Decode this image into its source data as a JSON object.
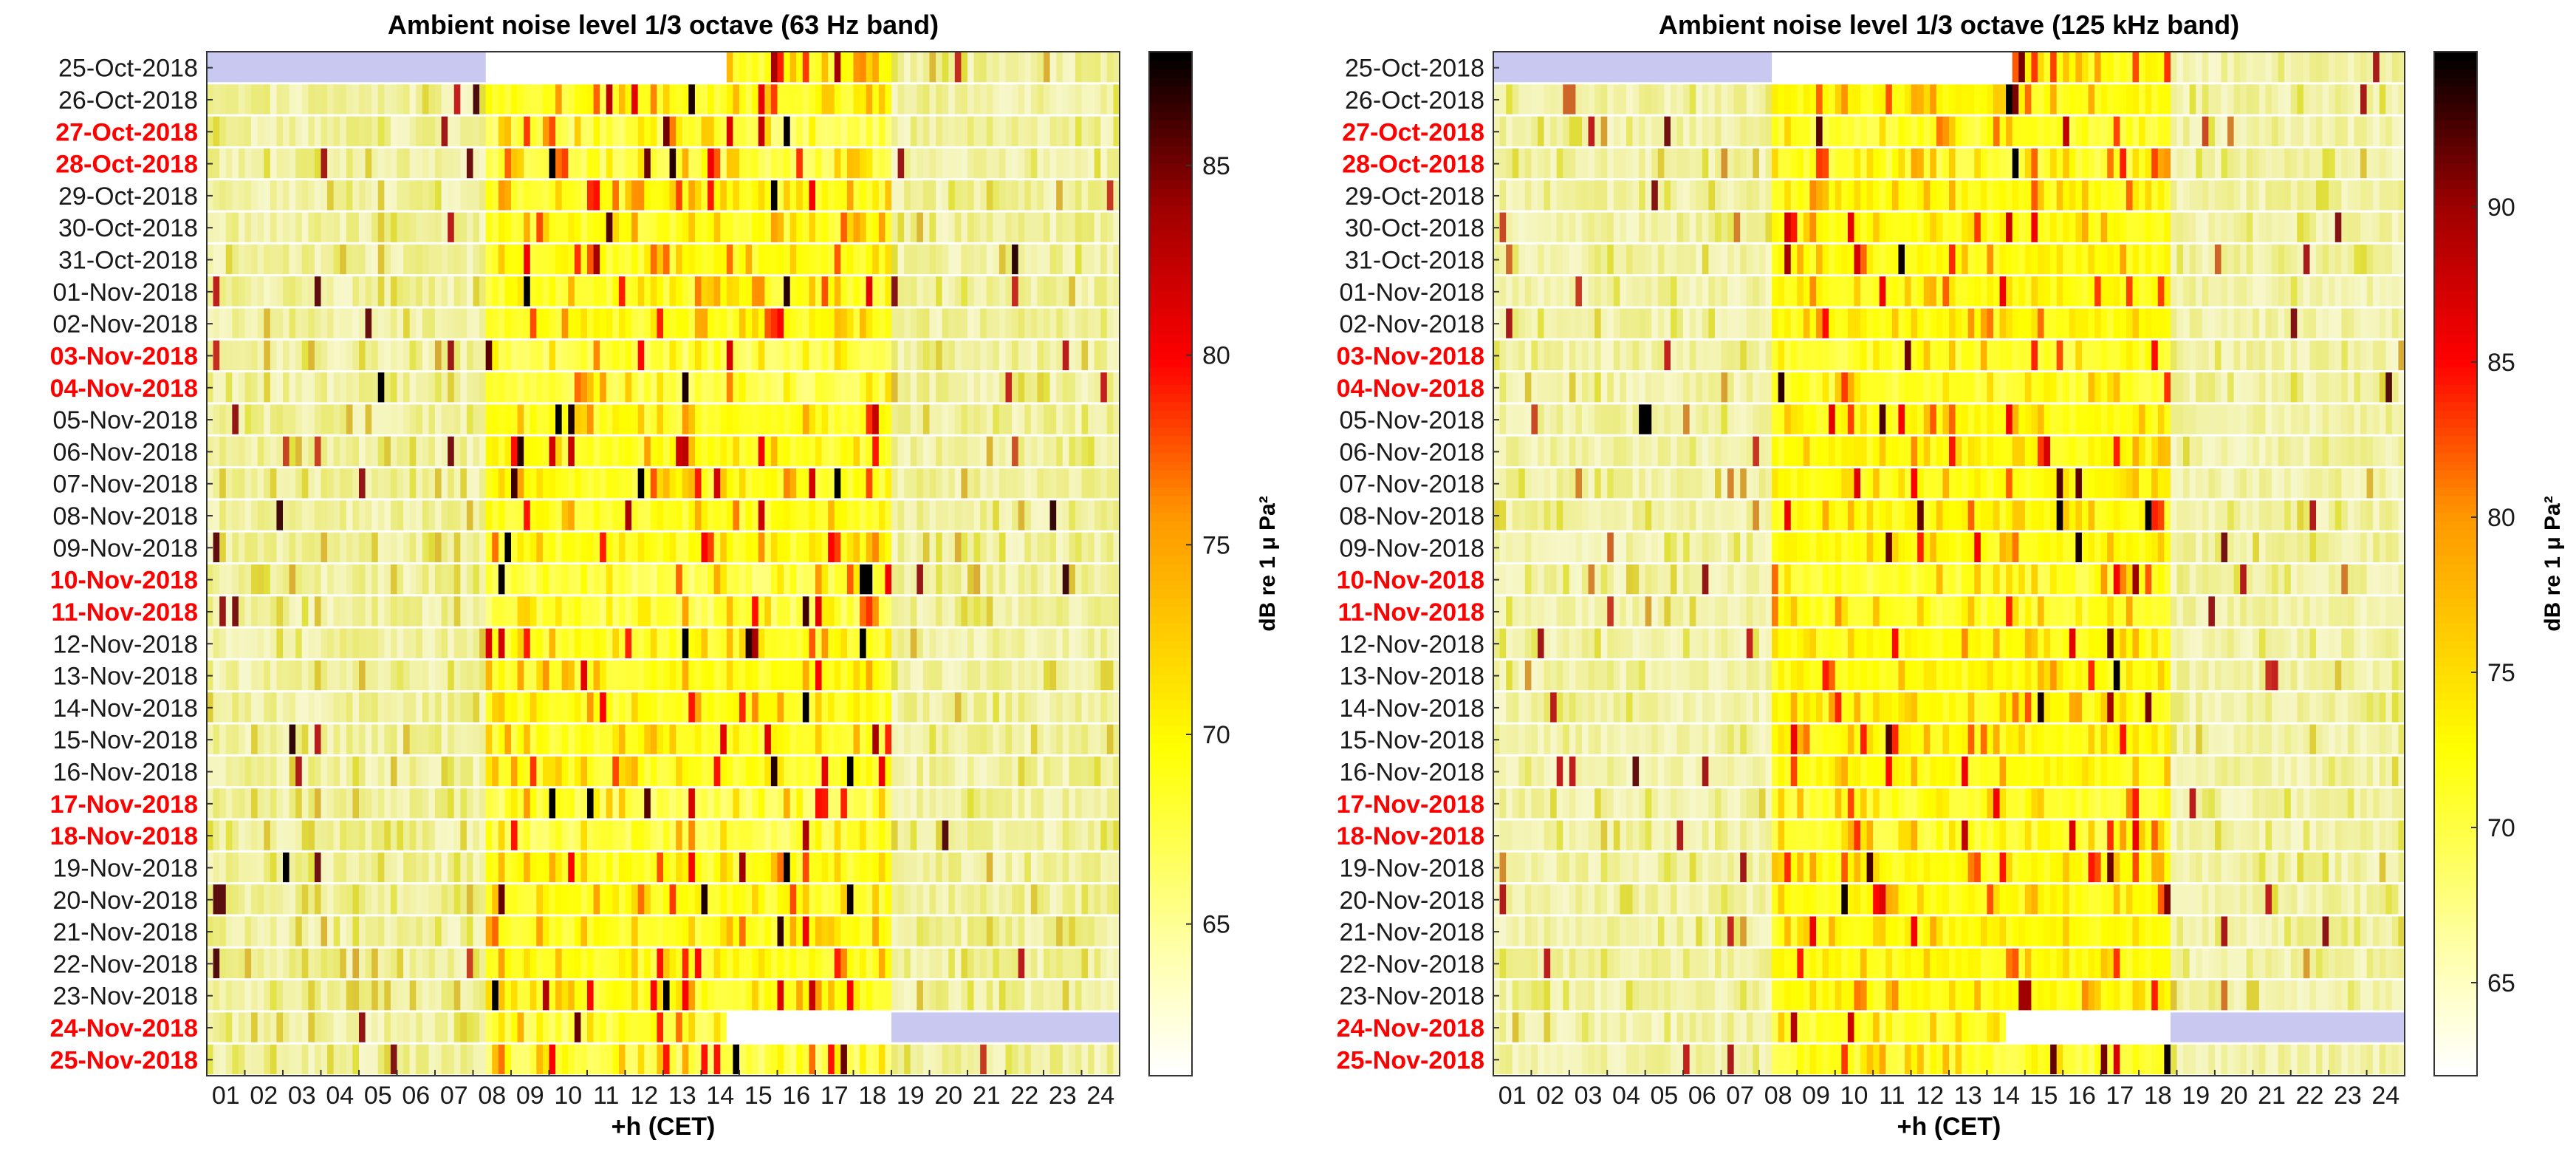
{
  "chart_data": [
    {
      "type": "heatmap",
      "title": "Ambient noise level 1/3 octave (63 Hz band)",
      "xlabel": "+h (CET)",
      "colorbar_label": "dB re 1 μ Pa²",
      "xlim": [
        0,
        24
      ],
      "x_ticks": [
        "01",
        "02",
        "03",
        "04",
        "05",
        "06",
        "07",
        "08",
        "09",
        "10",
        "11",
        "12",
        "13",
        "14",
        "15",
        "16",
        "17",
        "18",
        "19",
        "20",
        "21",
        "22",
        "23",
        "24"
      ],
      "color_range": [
        61,
        88
      ],
      "colorbar_ticks": [
        65,
        70,
        75,
        80,
        85
      ],
      "colormap": "hot (reversed)",
      "base_level_night": 65.5,
      "base_level_day": 68.5,
      "daytime_hours": [
        7.4,
        18.0
      ],
      "missing_color": "#c8c8f0",
      "missing_data_ranges": [
        {
          "row": 0,
          "from": 0,
          "to": 7.4
        },
        {
          "row": 0,
          "from": 7.4,
          "to": 13.7,
          "color": "#ffffff"
        },
        {
          "row": 30,
          "from": 13.7,
          "to": 18.0,
          "color": "#ffffff"
        },
        {
          "row": 30,
          "from": 18.0,
          "to": 24
        }
      ],
      "sample_level_at_hour": [
        {
          "date": "01-Nov-2018",
          "hour": 14.5,
          "value": 76
        },
        {
          "date": "10-Nov-2018",
          "hour": 17.4,
          "value": 88
        },
        {
          "date": "20-Nov-2018",
          "hour": 0.3,
          "value": 85
        }
      ]
    },
    {
      "type": "heatmap",
      "title": "Ambient noise level 1/3 octave (125 kHz band)",
      "xlabel": "+h (CET)",
      "colorbar_label": "dB re 1 μ Pa²",
      "xlim": [
        0,
        24
      ],
      "x_ticks": [
        "01",
        "02",
        "03",
        "04",
        "05",
        "06",
        "07",
        "08",
        "09",
        "10",
        "11",
        "12",
        "13",
        "14",
        "15",
        "16",
        "17",
        "18",
        "19",
        "20",
        "21",
        "22",
        "23",
        "24"
      ],
      "color_range": [
        62,
        95
      ],
      "colorbar_ticks": [
        65,
        70,
        75,
        80,
        85,
        90
      ],
      "colormap": "hot (reversed)",
      "base_level_night": 67,
      "base_level_day": 72,
      "daytime_hours": [
        7.3,
        17.9
      ],
      "missing_color": "#c8c8f0",
      "missing_data_ranges": [
        {
          "row": 0,
          "from": 0,
          "to": 7.3
        },
        {
          "row": 0,
          "from": 7.3,
          "to": 13.6,
          "color": "#ffffff"
        },
        {
          "row": 30,
          "from": 13.5,
          "to": 17.9,
          "color": "#ffffff"
        },
        {
          "row": 30,
          "from": 17.9,
          "to": 24
        }
      ],
      "sample_level_at_hour": [
        {
          "date": "26-Oct-2018",
          "hour": 2.0,
          "value": 82
        },
        {
          "date": "05-Nov-2018",
          "hour": 4.0,
          "value": 95
        },
        {
          "date": "23-Nov-2018",
          "hour": 14.0,
          "value": 90
        }
      ]
    }
  ],
  "dates": [
    {
      "label": "25-Oct-2018",
      "weekend": false
    },
    {
      "label": "26-Oct-2018",
      "weekend": false
    },
    {
      "label": "27-Oct-2018",
      "weekend": true
    },
    {
      "label": "28-Oct-2018",
      "weekend": true
    },
    {
      "label": "29-Oct-2018",
      "weekend": false
    },
    {
      "label": "30-Oct-2018",
      "weekend": false
    },
    {
      "label": "31-Oct-2018",
      "weekend": false
    },
    {
      "label": "01-Nov-2018",
      "weekend": false
    },
    {
      "label": "02-Nov-2018",
      "weekend": false
    },
    {
      "label": "03-Nov-2018",
      "weekend": true
    },
    {
      "label": "04-Nov-2018",
      "weekend": true
    },
    {
      "label": "05-Nov-2018",
      "weekend": false
    },
    {
      "label": "06-Nov-2018",
      "weekend": false
    },
    {
      "label": "07-Nov-2018",
      "weekend": false
    },
    {
      "label": "08-Nov-2018",
      "weekend": false
    },
    {
      "label": "09-Nov-2018",
      "weekend": false
    },
    {
      "label": "10-Nov-2018",
      "weekend": true
    },
    {
      "label": "11-Nov-2018",
      "weekend": true
    },
    {
      "label": "12-Nov-2018",
      "weekend": false
    },
    {
      "label": "13-Nov-2018",
      "weekend": false
    },
    {
      "label": "14-Nov-2018",
      "weekend": false
    },
    {
      "label": "15-Nov-2018",
      "weekend": false
    },
    {
      "label": "16-Nov-2018",
      "weekend": false
    },
    {
      "label": "17-Nov-2018",
      "weekend": true
    },
    {
      "label": "18-Nov-2018",
      "weekend": true
    },
    {
      "label": "19-Nov-2018",
      "weekend": false
    },
    {
      "label": "20-Nov-2018",
      "weekend": false
    },
    {
      "label": "21-Nov-2018",
      "weekend": false
    },
    {
      "label": "22-Nov-2018",
      "weekend": false
    },
    {
      "label": "23-Nov-2018",
      "weekend": false
    },
    {
      "label": "24-Nov-2018",
      "weekend": true
    },
    {
      "label": "25-Nov-2018",
      "weekend": true
    }
  ],
  "colors": {
    "weekend_label": "#ff0000",
    "weekday_label": "#1a1a1a",
    "frame": "#333333"
  }
}
